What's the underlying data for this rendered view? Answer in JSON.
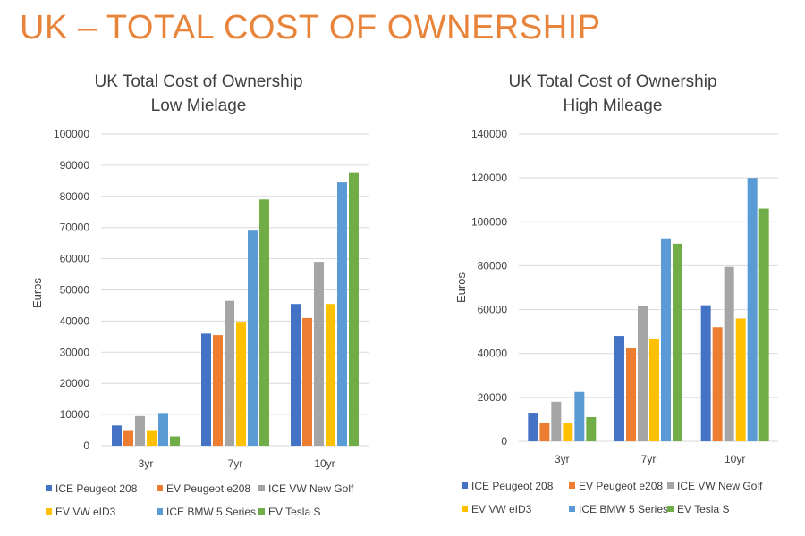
{
  "page_title": "UK – TOTAL COST OF OWNERSHIP",
  "colors": {
    "title": "#E8833A",
    "series": [
      "#4472C4",
      "#ED7D31",
      "#A5A5A5",
      "#FFC000",
      "#5B9BD5",
      "#70AD47"
    ]
  },
  "chart_data": [
    {
      "type": "bar",
      "title_lines": [
        "UK Total Cost of Ownership",
        "Low Mielage"
      ],
      "xlabel": "",
      "ylabel": "Euros",
      "ylim": [
        0,
        100000
      ],
      "yticks": [
        0,
        10000,
        20000,
        30000,
        40000,
        50000,
        60000,
        70000,
        80000,
        90000,
        100000
      ],
      "categories": [
        "3yr",
        "7yr",
        "10yr"
      ],
      "grid": true,
      "legend": "bottom",
      "series": [
        {
          "name": "ICE Peugeot 208",
          "values": [
            6500,
            36000,
            45500
          ]
        },
        {
          "name": "EV Peugeot e208",
          "values": [
            5000,
            35500,
            41000
          ]
        },
        {
          "name": "ICE VW New Golf",
          "values": [
            9500,
            46500,
            59000
          ]
        },
        {
          "name": "EV VW eID3",
          "values": [
            5000,
            39500,
            45500
          ]
        },
        {
          "name": "ICE BMW 5 Series",
          "values": [
            10500,
            69000,
            84500
          ]
        },
        {
          "name": "EV Tesla S",
          "values": [
            3000,
            79000,
            87500
          ]
        }
      ]
    },
    {
      "type": "bar",
      "title_lines": [
        "UK Total Cost of Ownership",
        "High Mileage"
      ],
      "xlabel": "",
      "ylabel": "Euros",
      "ylim": [
        0,
        140000
      ],
      "yticks": [
        0,
        20000,
        40000,
        60000,
        80000,
        100000,
        120000,
        140000
      ],
      "categories": [
        "3yr",
        "7yr",
        "10yr"
      ],
      "grid": true,
      "legend": "bottom",
      "series": [
        {
          "name": "ICE Peugeot 208",
          "values": [
            13000,
            48000,
            62000
          ]
        },
        {
          "name": "EV Peugeot e208",
          "values": [
            8500,
            42500,
            52000
          ]
        },
        {
          "name": "ICE VW New Golf",
          "values": [
            18000,
            61500,
            79500
          ]
        },
        {
          "name": "EV VW eID3",
          "values": [
            8500,
            46500,
            56000
          ]
        },
        {
          "name": "ICE BMW 5 Series",
          "values": [
            22500,
            92500,
            120000
          ]
        },
        {
          "name": "EV Tesla S",
          "values": [
            11000,
            90000,
            106000
          ]
        }
      ]
    }
  ]
}
